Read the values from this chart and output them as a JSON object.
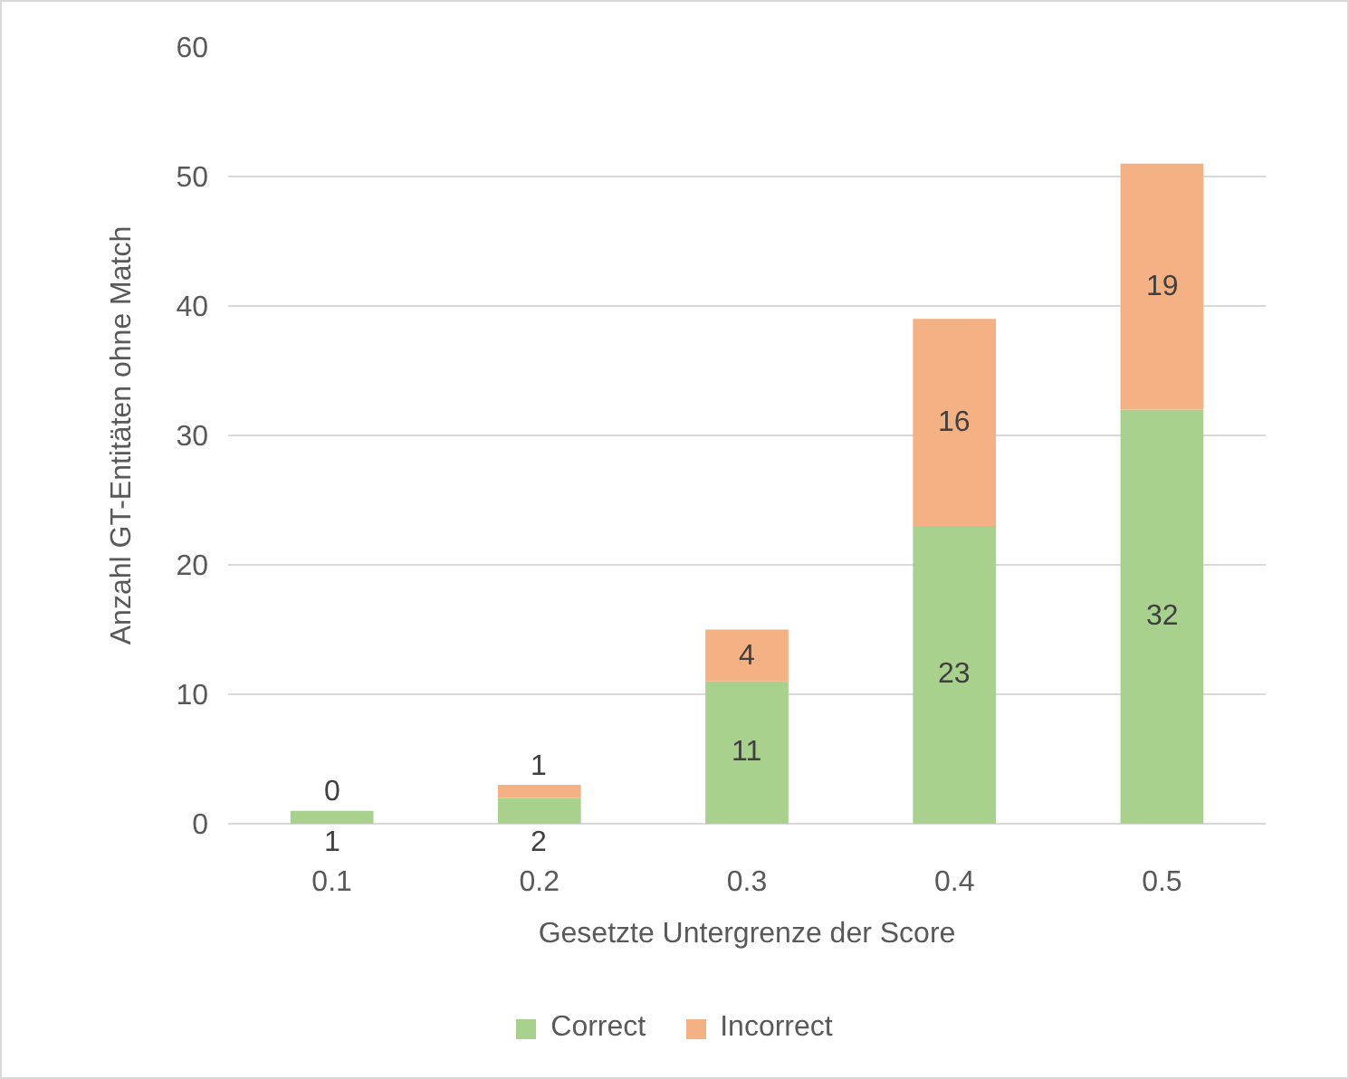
{
  "chart_data": {
    "type": "bar",
    "stacked": true,
    "xlabel": "Gesetzte Untergrenze der Score",
    "ylabel": "Anzahl GT-Entitäten ohne Match",
    "categories": [
      "0.1",
      "0.2",
      "0.3",
      "0.4",
      "0.5"
    ],
    "series": [
      {
        "name": "Correct",
        "color": "#a9d18e",
        "values": [
          1,
          2,
          11,
          23,
          32
        ]
      },
      {
        "name": "Incorrect",
        "color": "#f4b183",
        "values": [
          0,
          1,
          4,
          16,
          19
        ]
      }
    ],
    "ylim": [
      0,
      60
    ],
    "yticks": [
      0,
      10,
      20,
      30,
      40,
      50,
      60
    ],
    "grid": "y",
    "legend": "bottom",
    "data_labels": true
  }
}
